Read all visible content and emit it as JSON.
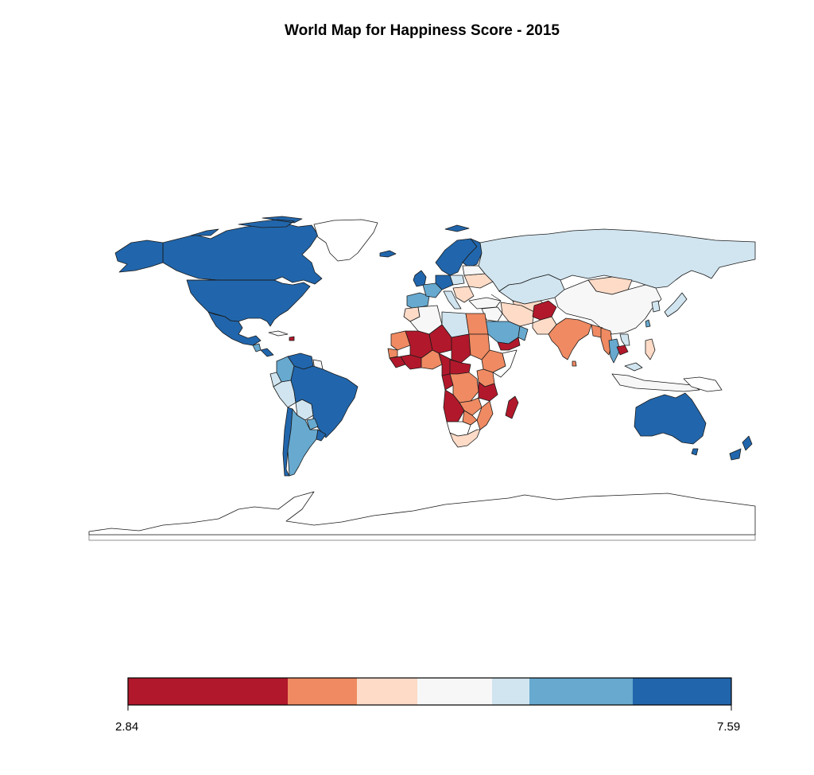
{
  "title": "World Map for Happiness Score - 2015",
  "palette": {
    "c1": "#b2182b",
    "c2": "#ef8a62",
    "c3": "#fddbc7",
    "c4": "#f7f7f7",
    "c5": "#d1e5f0",
    "c6": "#67a9cf",
    "c7": "#2166ac",
    "no_data": "#ffffff"
  },
  "legend": {
    "min_label": "2.84",
    "max_label": "7.59",
    "colors": [
      "#b2182b",
      "#ef8a62",
      "#fddbc7",
      "#f7f7f7",
      "#d1e5f0",
      "#67a9cf",
      "#2166ac"
    ]
  }
}
